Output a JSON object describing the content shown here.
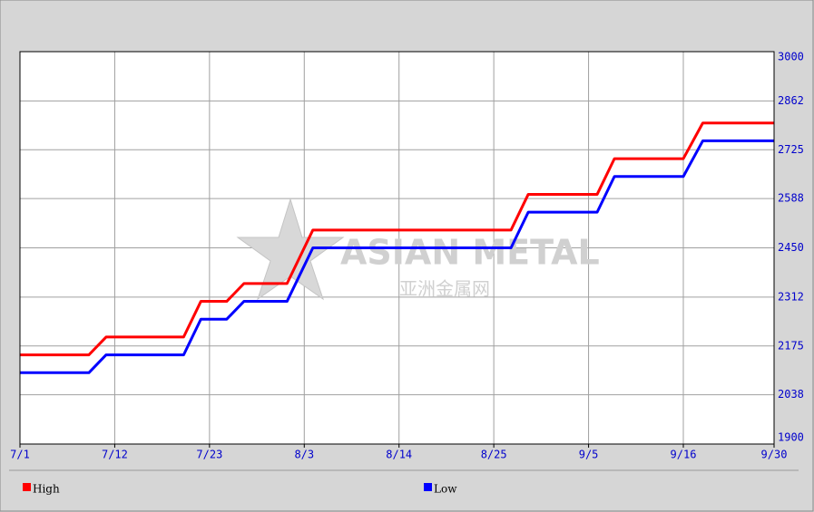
{
  "chart_data": {
    "type": "line",
    "watermark": [
      "ASIAN METAL",
      "亚洲金属网"
    ],
    "x": [
      "7/1",
      "7/9",
      "7/11",
      "7/20",
      "7/22",
      "7/25",
      "7/27",
      "8/1",
      "8/4",
      "8/27",
      "8/29",
      "9/6",
      "9/8",
      "9/16",
      "9/19",
      "9/30"
    ],
    "series": [
      {
        "name": "High",
        "color": "#ff0000",
        "values": [
          2150,
          2150,
          2200,
          2200,
          2300,
          2300,
          2350,
          2350,
          2500,
          2500,
          2600,
          2600,
          2700,
          2700,
          2800,
          2800
        ]
      },
      {
        "name": "Low",
        "color": "#0000ff",
        "values": [
          2100,
          2100,
          2150,
          2150,
          2250,
          2250,
          2300,
          2300,
          2450,
          2450,
          2550,
          2550,
          2650,
          2650,
          2750,
          2750
        ]
      }
    ],
    "xlim": [
      "7/1",
      "9/30"
    ],
    "xticks": [
      "7/1",
      "7/12",
      "7/23",
      "8/3",
      "8/14",
      "8/25",
      "9/5",
      "9/16",
      "9/30"
    ],
    "ylim": [
      1900,
      3000
    ],
    "yticks": [
      1900,
      2038,
      2175,
      2312,
      2450,
      2588,
      2725,
      2862,
      3000
    ],
    "grid": true
  }
}
